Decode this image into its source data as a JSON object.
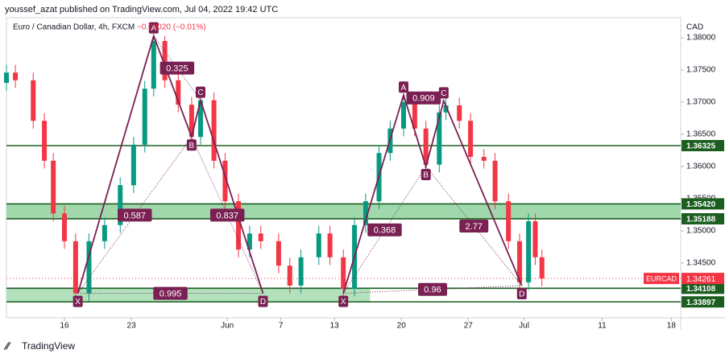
{
  "chart_data": {
    "type": "candlestick",
    "header": "youssef_azat published on TradingView.com, Jul 04, 2022 19:42 UTC",
    "title": "Euro / Canadian Dollar, 4h, FXCM",
    "change": "−0.00020 (−0.01%)",
    "currency": "CAD",
    "brand": "TradingView",
    "up_color": "#089981",
    "down_color": "#f23645",
    "xlim": [
      0,
      302.2
    ],
    "xticks": [
      {
        "value": 26,
        "label": "16"
      },
      {
        "value": 56,
        "label": "23"
      },
      {
        "value": 99,
        "label": "Jun"
      },
      {
        "value": 123,
        "label": "7"
      },
      {
        "value": 147,
        "label": "13"
      },
      {
        "value": 177,
        "label": "20"
      },
      {
        "value": 207,
        "label": "27"
      },
      {
        "value": 232,
        "label": "Jul"
      },
      {
        "value": 267,
        "label": "11"
      },
      {
        "value": 298,
        "label": "18"
      }
    ],
    "ylim": [
      1.3365,
      1.383125
    ],
    "yticks": [
      {
        "value": 1.38,
        "label": "1.38000"
      },
      {
        "value": 1.375,
        "label": "1.37500"
      },
      {
        "value": 1.37,
        "label": "1.37000"
      },
      {
        "value": 1.365,
        "label": "1.36500"
      },
      {
        "value": 1.36,
        "label": "1.36000"
      },
      {
        "value": 1.355,
        "label": "1.35500"
      },
      {
        "value": 1.35,
        "label": "1.35000"
      },
      {
        "value": 1.345,
        "label": "1.34500"
      }
    ],
    "x": [
      0,
      4,
      12,
      17,
      21,
      26,
      31,
      37,
      44,
      51,
      57,
      62,
      66,
      71,
      77,
      83,
      87,
      93,
      98,
      104,
      109,
      114,
      122,
      127,
      132,
      140,
      145,
      151,
      156,
      161,
      167,
      172,
      178,
      183,
      188,
      194,
      197,
      203,
      208,
      214,
      219,
      225,
      230,
      234,
      237,
      240
    ],
    "open": [
      1.373,
      1.3746,
      1.3734,
      1.3671,
      1.3609,
      1.3527,
      1.3484,
      1.3403,
      1.3484,
      1.3509,
      1.3571,
      1.3634,
      1.3721,
      1.3795,
      1.3734,
      1.3696,
      1.3646,
      1.3703,
      1.3609,
      1.3546,
      1.3471,
      1.3496,
      1.3484,
      1.3446,
      1.3415,
      1.3459,
      1.3496,
      1.3459,
      1.341,
      1.3509,
      1.3546,
      1.3621,
      1.3659,
      1.37,
      1.3659,
      1.3603,
      1.3684,
      1.3695,
      1.3671,
      1.3615,
      1.3609,
      1.3546,
      1.3484,
      1.342,
      1.3515,
      1.3459
    ],
    "high": [
      1.3758,
      1.3758,
      1.3746,
      1.3683,
      1.3621,
      1.3539,
      1.3496,
      1.3496,
      1.3521,
      1.3583,
      1.3646,
      1.3733,
      1.3803,
      1.3803,
      1.3746,
      1.3708,
      1.3715,
      1.3715,
      1.3621,
      1.3558,
      1.3508,
      1.3508,
      1.3496,
      1.3458,
      1.3471,
      1.3508,
      1.3508,
      1.3471,
      1.3521,
      1.3558,
      1.3633,
      1.3671,
      1.3712,
      1.3712,
      1.3671,
      1.3696,
      1.3707,
      1.3707,
      1.3683,
      1.3627,
      1.3621,
      1.3558,
      1.3496,
      1.3527,
      1.3527,
      1.3471
    ],
    "low": [
      1.3718,
      1.3722,
      1.3659,
      1.3597,
      1.3515,
      1.3472,
      1.3391,
      1.3391,
      1.3472,
      1.3497,
      1.3559,
      1.3622,
      1.3709,
      1.3722,
      1.3684,
      1.3634,
      1.3634,
      1.3597,
      1.3534,
      1.3459,
      1.3459,
      1.3472,
      1.3434,
      1.3403,
      1.3403,
      1.3447,
      1.3447,
      1.3398,
      1.3398,
      1.3497,
      1.3534,
      1.3609,
      1.3647,
      1.3647,
      1.3591,
      1.3591,
      1.3672,
      1.3659,
      1.3603,
      1.3597,
      1.3534,
      1.3472,
      1.3408,
      1.3408,
      1.3447,
      1.3414
    ],
    "close": [
      1.3746,
      1.3734,
      1.3671,
      1.3609,
      1.3527,
      1.3484,
      1.3403,
      1.3484,
      1.3509,
      1.3571,
      1.3634,
      1.3721,
      1.3795,
      1.3734,
      1.3696,
      1.3646,
      1.3703,
      1.3609,
      1.3546,
      1.3471,
      1.3496,
      1.3484,
      1.3446,
      1.3415,
      1.3459,
      1.3496,
      1.3459,
      1.341,
      1.3509,
      1.3546,
      1.3621,
      1.3659,
      1.37,
      1.3659,
      1.3603,
      1.3684,
      1.3695,
      1.3671,
      1.3615,
      1.3609,
      1.3546,
      1.3484,
      1.342,
      1.3515,
      1.3459,
      1.3426
    ],
    "levels": [
      {
        "value": 1.36325,
        "label": "1.36325"
      },
      {
        "value": 1.3542,
        "label": "1.35420"
      },
      {
        "value": 1.35188,
        "label": "1.35188"
      },
      {
        "value": 1.34108,
        "label": "1.34108"
      },
      {
        "value": 1.33897,
        "label": "1.33897"
      }
    ],
    "level_color": "#1b5e20",
    "zones": [
      {
        "low": 1.35188,
        "high": 1.3542,
        "x_end": 302.2,
        "color": "#8fd19e"
      },
      {
        "low": 1.33897,
        "high": 1.34108,
        "x_end": 163,
        "color": "#a5dcb0"
      }
    ],
    "last_price": {
      "symbol": "EURCAD",
      "value": 1.34261,
      "label": "1.34261",
      "color": "#f23645"
    },
    "pattern_color": "#7a2052",
    "patterns": [
      {
        "points": [
          {
            "label": "X",
            "x": 32,
            "price": 1.3403
          },
          {
            "label": "A",
            "x": 66,
            "price": 1.3803
          },
          {
            "label": "B",
            "x": 83,
            "price": 1.3646
          },
          {
            "label": "C",
            "x": 87,
            "price": 1.3703
          },
          {
            "label": "D",
            "x": 115,
            "price": 1.3403
          }
        ],
        "ratios": [
          "0.325",
          "0.587",
          "0.837",
          "0.995"
        ]
      },
      {
        "points": [
          {
            "label": "X",
            "x": 151,
            "price": 1.3403
          },
          {
            "label": "A",
            "x": 178,
            "price": 1.3711
          },
          {
            "label": "B",
            "x": 188,
            "price": 1.36
          },
          {
            "label": "C",
            "x": 196,
            "price": 1.3702
          },
          {
            "label": "D",
            "x": 231,
            "price": 1.3415
          }
        ],
        "ratios": [
          "0.909",
          "0.368",
          "2.77",
          "0.96"
        ]
      }
    ]
  }
}
